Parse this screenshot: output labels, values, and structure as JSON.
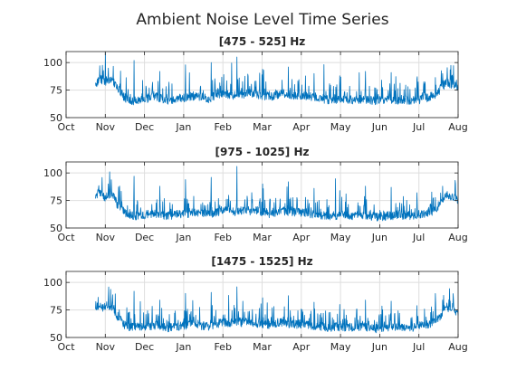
{
  "figure": {
    "title": "Ambient Noise Level Time Series"
  },
  "chart_data": [
    {
      "type": "line",
      "title": "[475 - 525]  Hz",
      "xlabel": "",
      "ylabel": "",
      "x_tick_labels": [
        "Oct",
        "Nov",
        "Dec",
        "Jan",
        "Feb",
        "Mar",
        "Apr",
        "May",
        "Jun",
        "Jul",
        "Aug"
      ],
      "y_ticks": [
        50,
        75,
        100
      ],
      "ylim": [
        50,
        110
      ],
      "xlim_months": [
        0,
        10
      ],
      "grid": true,
      "series_color": "#0072BD",
      "series": [
        {
          "x_months": [
            0.75,
            0.85,
            1.0,
            1.15,
            1.3,
            1.5,
            1.7,
            2.0,
            2.3,
            2.6,
            3.0,
            3.3,
            3.6,
            4.0,
            4.3,
            4.6,
            4.9,
            5.2,
            5.5,
            5.8,
            6.1,
            6.4,
            6.7,
            7.0,
            7.3,
            7.6,
            7.9,
            8.2,
            8.5,
            8.8,
            9.1,
            9.4,
            9.7,
            10.0
          ],
          "values": [
            80,
            85,
            83,
            85,
            78,
            68,
            65,
            67,
            69,
            66,
            68,
            70,
            67,
            72,
            70,
            72,
            71,
            69,
            72,
            70,
            70,
            68,
            66,
            67,
            66,
            67,
            65,
            66,
            66,
            65,
            67,
            70,
            82,
            78
          ],
          "peaks": [
            95,
            102,
            92,
            98,
            100,
            105,
            94,
            96,
            90,
            88,
            92,
            91,
            85,
            90
          ]
        }
      ]
    },
    {
      "type": "line",
      "title": "[975 - 1025]  Hz",
      "xlabel": "",
      "ylabel": "",
      "x_tick_labels": [
        "Oct",
        "Nov",
        "Dec",
        "Jan",
        "Feb",
        "Mar",
        "Apr",
        "May",
        "Jun",
        "Jul",
        "Aug"
      ],
      "y_ticks": [
        50,
        75,
        100
      ],
      "ylim": [
        50,
        110
      ],
      "xlim_months": [
        0,
        10
      ],
      "grid": true,
      "series_color": "#0072BD",
      "series": [
        {
          "x_months": [
            0.75,
            0.85,
            1.0,
            1.15,
            1.3,
            1.5,
            1.7,
            2.0,
            2.3,
            2.6,
            3.0,
            3.3,
            3.6,
            4.0,
            4.3,
            4.6,
            4.9,
            5.2,
            5.5,
            5.8,
            6.1,
            6.4,
            6.7,
            7.0,
            7.3,
            7.6,
            7.9,
            8.2,
            8.5,
            8.8,
            9.1,
            9.4,
            9.7,
            10.0
          ],
          "values": [
            80,
            82,
            78,
            82,
            72,
            63,
            61,
            62,
            63,
            61,
            63,
            64,
            62,
            66,
            65,
            66,
            65,
            63,
            66,
            64,
            64,
            62,
            61,
            62,
            61,
            62,
            60,
            61,
            62,
            61,
            63,
            66,
            80,
            76
          ],
          "peaks": [
            90,
            97,
            88,
            94,
            96,
            106,
            90,
            92,
            86,
            84,
            88,
            87,
            82,
            88
          ]
        }
      ]
    },
    {
      "type": "line",
      "title": "[1475 - 1525]  Hz",
      "xlabel": "",
      "ylabel": "",
      "x_tick_labels": [
        "Oct",
        "Nov",
        "Dec",
        "Jan",
        "Feb",
        "Mar",
        "Apr",
        "May",
        "Jun",
        "Jul",
        "Aug"
      ],
      "y_ticks": [
        50,
        75,
        100
      ],
      "ylim": [
        50,
        110
      ],
      "xlim_months": [
        0,
        10
      ],
      "grid": true,
      "series_color": "#0072BD",
      "series": [
        {
          "x_months": [
            0.75,
            0.85,
            1.0,
            1.15,
            1.3,
            1.5,
            1.7,
            2.0,
            2.3,
            2.6,
            3.0,
            3.3,
            3.6,
            4.0,
            4.3,
            4.6,
            4.9,
            5.2,
            5.5,
            5.8,
            6.1,
            6.4,
            6.7,
            7.0,
            7.3,
            7.6,
            7.9,
            8.2,
            8.5,
            8.8,
            9.1,
            9.4,
            9.7,
            10.0
          ],
          "values": [
            76,
            80,
            75,
            79,
            70,
            61,
            59,
            60,
            61,
            59,
            61,
            62,
            60,
            64,
            63,
            64,
            63,
            61,
            64,
            62,
            62,
            60,
            59,
            60,
            59,
            60,
            58,
            59,
            60,
            59,
            61,
            64,
            76,
            72
          ],
          "peaks": [
            86,
            92,
            84,
            90,
            91,
            96,
            86,
            88,
            82,
            80,
            84,
            83,
            79,
            84
          ]
        }
      ]
    }
  ]
}
